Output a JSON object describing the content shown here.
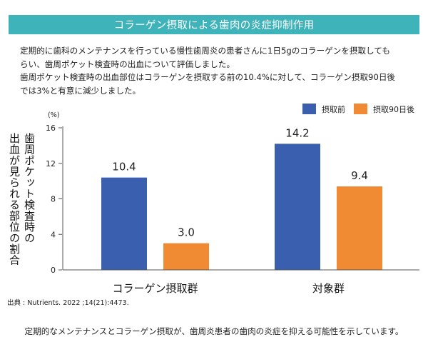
{
  "header": {
    "title": "コラーゲン摂取による歯肉の炎症抑制作用"
  },
  "intro": {
    "line1": "定期的に歯科のメンテナンスを行っている慢性歯周炎の患者さんに1日5gのコラーゲンを摂取しても",
    "line2": "らい、歯周ポケット検査時の出血について評価しました。",
    "line3": "歯周ポケット検査時の出血部位はコラーゲンを摂取する前の10.4%に対して、コラーゲン摂取90日後",
    "line4": "では3%と有意に減少しました。"
  },
  "colors": {
    "header": "#3fb3ba",
    "before": "#3a5faf",
    "after": "#f08a33",
    "axis": "#555555"
  },
  "chart_data": {
    "type": "bar",
    "unit": "(%)",
    "ylabel_col1": "歯周ポケット検査時の",
    "ylabel_col2": "出血が見られる部位の割合",
    "ylim": [
      0,
      16
    ],
    "yticks": [
      0,
      4,
      8,
      12,
      16
    ],
    "categories": [
      "コラーゲン摂取群",
      "対象群"
    ],
    "series": [
      {
        "name": "摂取前",
        "values": [
          10.4,
          14.2
        ],
        "labels": [
          "10.4",
          "14.2"
        ]
      },
      {
        "name": "摂取90日後",
        "values": [
          3.0,
          9.4
        ],
        "labels": [
          "3.0",
          "9.4"
        ]
      }
    ]
  },
  "source": "出典 : Nutrients. 2022 ;14(21):4473.",
  "footer": "定期的なメンテナンスとコラーゲン摂取が、歯周炎患者の歯肉の炎症を抑える可能性を示しています。"
}
